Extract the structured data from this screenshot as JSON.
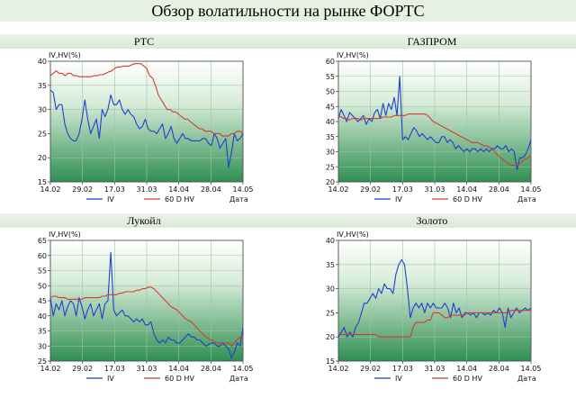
{
  "title": "Обзор волатильности на рынке ФОРТС",
  "chart_data": [
    {
      "type": "line",
      "title": "РТС",
      "ylabel": "IV,HV(%)",
      "xlabel": "Дата",
      "ylim": [
        15,
        40
      ],
      "yticks": [
        15,
        20,
        25,
        30,
        35,
        40
      ],
      "xticks": [
        "14.02",
        "29.02",
        "17.03",
        "31.03",
        "14.04",
        "28.04",
        "14.05"
      ],
      "series": [
        {
          "name": "IV",
          "color": "#1f3fcf",
          "values": [
            34,
            33.5,
            30,
            31,
            31,
            27,
            25,
            24,
            23.5,
            23.5,
            25,
            28,
            32,
            28,
            25,
            26.5,
            28,
            24,
            30,
            28.5,
            30,
            33,
            31,
            31,
            32,
            30,
            29,
            30,
            29,
            28.5,
            27,
            26,
            26.5,
            28,
            26,
            25.5,
            25.5,
            25,
            26,
            27,
            24,
            25,
            26.5,
            24,
            23,
            24,
            25,
            24,
            24,
            23.5,
            23.5,
            23.5,
            23.5,
            24,
            24,
            23,
            22.5,
            25,
            24,
            22,
            23,
            24,
            18,
            21,
            25,
            23.5,
            24,
            25
          ]
        },
        {
          "name": "60 D HV",
          "color": "#d83a2a",
          "values": [
            37,
            37.5,
            38,
            37.5,
            37.5,
            37,
            37.5,
            37.5,
            37,
            37,
            36.8,
            36.8,
            36.8,
            36.8,
            36.8,
            37,
            37,
            37.2,
            37.2,
            37.5,
            37.8,
            38,
            38.5,
            38.8,
            38.8,
            39,
            39,
            39,
            39.3,
            39.5,
            39.5,
            39.5,
            39,
            38.5,
            37,
            36.5,
            35,
            33,
            32,
            31,
            30,
            30,
            29.5,
            29.5,
            29,
            28.5,
            28,
            28,
            27.5,
            27,
            26.5,
            26,
            26,
            25.5,
            25.5,
            25.5,
            25,
            25,
            25,
            24.5,
            24.5,
            24.5,
            25,
            25,
            25.5,
            25.5,
            25
          ]
        }
      ]
    },
    {
      "type": "line",
      "title": "ГАЗПРОМ",
      "ylabel": "IV,HV(%)",
      "xlabel": "Дата",
      "ylim": [
        20,
        60
      ],
      "yticks": [
        20,
        25,
        30,
        35,
        40,
        45,
        50,
        55,
        60
      ],
      "xticks": [
        "14.02",
        "29.02",
        "17.03",
        "31.03",
        "14.04",
        "28.04",
        "14.05"
      ],
      "series": [
        {
          "name": "IV",
          "color": "#1f3fcf",
          "values": [
            41,
            44,
            42,
            40,
            43,
            42,
            41,
            40,
            41,
            42,
            39,
            41,
            40,
            43,
            44,
            41,
            46,
            42,
            46,
            44,
            48,
            42,
            55,
            34,
            35,
            34,
            36,
            38,
            37,
            35,
            36,
            35,
            34,
            35,
            34,
            33,
            33,
            35,
            35,
            33,
            34,
            33,
            31,
            32,
            31,
            30,
            31,
            30,
            31,
            31,
            30,
            31,
            30,
            31,
            30,
            31,
            31,
            32,
            31,
            31,
            32,
            30,
            31,
            30,
            24,
            28,
            28,
            29,
            31,
            34
          ]
        },
        {
          "name": "60 D HV",
          "color": "#d83a2a",
          "values": [
            42,
            41.5,
            41,
            41,
            40.5,
            41,
            41,
            41,
            40.5,
            41,
            41,
            41,
            41,
            41,
            41,
            41,
            41.5,
            41.5,
            41.5,
            41.5,
            42,
            42,
            42,
            42,
            42,
            42.5,
            42.5,
            42.5,
            42.5,
            42.5,
            42.5,
            42.5,
            42,
            41,
            40,
            39.5,
            39,
            38.5,
            38,
            37.5,
            37,
            36.5,
            36,
            35.5,
            35,
            34.5,
            34,
            33.5,
            33,
            33,
            33,
            32.5,
            32,
            32,
            31.5,
            31,
            30,
            29,
            28,
            27.5,
            26.5,
            26,
            25.5,
            25.5,
            26,
            26,
            27,
            27.5,
            28,
            28.5
          ]
        }
      ]
    },
    {
      "type": "line",
      "title": "Лукойл",
      "ylabel": "IV,HV(%)",
      "xlabel": "Дата",
      "ylim": [
        25,
        65
      ],
      "yticks": [
        25,
        30,
        35,
        40,
        45,
        50,
        55,
        60,
        65
      ],
      "xticks": [
        "14.02",
        "29.02",
        "17.03",
        "31.03",
        "14.04",
        "28.04",
        "14.05"
      ],
      "series": [
        {
          "name": "IV",
          "color": "#1f3fcf",
          "values": [
            46,
            40,
            44,
            42,
            45,
            40,
            43,
            45,
            44,
            40,
            46,
            43,
            39,
            42,
            44,
            40,
            42,
            44,
            39,
            44,
            45,
            61,
            42,
            40,
            41,
            42,
            40,
            40,
            39,
            38,
            39,
            38,
            39,
            37,
            37,
            38,
            34,
            32,
            31,
            32,
            31,
            33,
            32,
            32,
            31,
            31,
            32,
            33,
            34,
            33,
            33,
            32,
            32,
            31,
            30,
            30.5,
            31,
            31,
            30,
            30,
            31,
            30,
            29,
            26,
            28,
            31,
            30,
            36
          ]
        },
        {
          "name": "60 D HV",
          "color": "#d83a2a",
          "values": [
            46,
            46.5,
            46.5,
            46,
            46,
            46,
            45.5,
            45.5,
            45.5,
            45.5,
            45.5,
            45.5,
            46,
            46,
            46,
            46,
            46,
            46,
            46.5,
            46.5,
            47,
            47,
            47,
            47,
            47.5,
            47.5,
            48,
            48,
            48,
            48,
            48.5,
            48.5,
            49,
            49,
            49.5,
            49.5,
            49,
            48,
            47,
            46,
            45,
            44,
            43,
            42.5,
            42,
            41,
            40,
            39,
            38.5,
            38,
            37,
            36,
            35,
            34,
            33,
            32.5,
            32,
            31.5,
            31,
            31,
            31,
            31,
            31,
            30,
            31,
            32,
            33,
            32.5
          ]
        }
      ]
    },
    {
      "type": "line",
      "title": "Золото",
      "ylabel": "IV,HV(%)",
      "xlabel": "Дата",
      "ylim": [
        15,
        40
      ],
      "yticks": [
        15,
        20,
        25,
        30,
        35,
        40
      ],
      "xticks": [
        "14.02",
        "29.02",
        "17.03",
        "31.03",
        "14.04",
        "28.04",
        "14.05"
      ],
      "series": [
        {
          "name": "IV",
          "color": "#1f3fcf",
          "values": [
            20,
            21,
            22,
            20,
            21,
            20,
            22,
            23,
            25,
            27,
            27,
            28,
            29,
            28,
            30,
            29,
            31,
            30,
            30,
            29,
            33,
            35,
            36,
            35,
            30,
            24,
            26,
            27,
            26,
            27,
            25,
            27,
            26,
            27,
            26,
            26,
            26,
            27,
            26,
            24,
            27,
            25,
            26,
            24,
            25,
            25,
            24.5,
            25,
            24,
            25,
            25,
            24.5,
            25,
            24.5,
            25.5,
            25,
            26,
            25,
            22,
            26,
            24,
            25,
            26,
            25,
            25.5,
            26,
            25.5,
            26
          ]
        },
        {
          "name": "60 D HV",
          "color": "#d83a2a",
          "values": [
            20.5,
            20.5,
            20.5,
            20.5,
            20.5,
            20.5,
            20.5,
            20.5,
            20.5,
            20.5,
            20.5,
            20.5,
            20.5,
            20.5,
            20,
            20,
            20,
            20,
            20,
            20,
            20,
            20,
            20,
            20,
            20,
            20,
            22,
            23,
            23,
            23,
            23,
            23.5,
            23.5,
            25,
            25,
            25,
            24.5,
            24,
            24,
            24.5,
            24.5,
            24.5,
            24.5,
            24.5,
            24.5,
            25,
            25,
            25,
            25,
            25,
            25,
            25,
            25,
            25,
            25,
            25,
            25,
            25,
            25,
            25,
            25.5,
            25.5,
            25.5,
            25.5,
            25.5,
            25.5,
            25.5,
            25.5
          ]
        }
      ]
    }
  ]
}
